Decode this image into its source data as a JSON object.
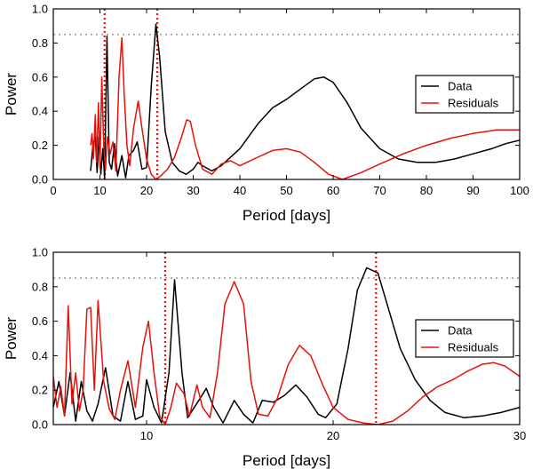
{
  "chart_data": [
    {
      "type": "line",
      "title": "",
      "xlabel": "Period [days]",
      "ylabel": "Power",
      "xlim": [
        0,
        100
      ],
      "ylim": [
        0,
        1.0
      ],
      "xticks": [
        0,
        10,
        20,
        30,
        40,
        50,
        60,
        70,
        80,
        90,
        100
      ],
      "yticks": [
        0.0,
        0.2,
        0.4,
        0.6,
        0.8,
        1.0
      ],
      "grid": false,
      "legend_position": "center-right",
      "threshold": {
        "y": 0.85,
        "color": "#a0a0a0",
        "style": "dotted"
      },
      "markers": [
        {
          "x": 11.0,
          "color": "#e8100a"
        },
        {
          "x": 22.3,
          "color": "#e8100a"
        }
      ],
      "series": [
        {
          "name": "Data",
          "color": "#000000",
          "points": [
            [
              8,
              0.05
            ],
            [
              8.5,
              0.2
            ],
            [
              9,
              0.25
            ],
            [
              9.4,
              0.04
            ],
            [
              9.8,
              0.25
            ],
            [
              10.2,
              0.03
            ],
            [
              10.6,
              0.18
            ],
            [
              11.0,
              0.01
            ],
            [
              11.5,
              0.84
            ],
            [
              12.0,
              0.1
            ],
            [
              12.5,
              0.06
            ],
            [
              13.1,
              0.21
            ],
            [
              13.8,
              0.02
            ],
            [
              14.7,
              0.14
            ],
            [
              15.5,
              0.01
            ],
            [
              16.2,
              0.14
            ],
            [
              17.2,
              0.17
            ],
            [
              18.0,
              0.22
            ],
            [
              19.0,
              0.06
            ],
            [
              20.0,
              0.07
            ],
            [
              21.0,
              0.55
            ],
            [
              22.0,
              0.91
            ],
            [
              22.8,
              0.72
            ],
            [
              24,
              0.28
            ],
            [
              25.5,
              0.1
            ],
            [
              27,
              0.05
            ],
            [
              28.5,
              0.03
            ],
            [
              30,
              0.06
            ],
            [
              31,
              0.1
            ],
            [
              32,
              0.08
            ],
            [
              34,
              0.05
            ],
            [
              36,
              0.08
            ],
            [
              40,
              0.18
            ],
            [
              44,
              0.33
            ],
            [
              47,
              0.42
            ],
            [
              50,
              0.47
            ],
            [
              53,
              0.53
            ],
            [
              56,
              0.59
            ],
            [
              58,
              0.6
            ],
            [
              60,
              0.57
            ],
            [
              63,
              0.45
            ],
            [
              66,
              0.3
            ],
            [
              70,
              0.18
            ],
            [
              74,
              0.12
            ],
            [
              78,
              0.1
            ],
            [
              82,
              0.1
            ],
            [
              86,
              0.12
            ],
            [
              90,
              0.15
            ],
            [
              94,
              0.18
            ],
            [
              97,
              0.21
            ],
            [
              100,
              0.23
            ]
          ]
        },
        {
          "name": "Residuals",
          "color": "#e8100a",
          "points": [
            [
              8,
              0.2
            ],
            [
              8.3,
              0.27
            ],
            [
              8.6,
              0.12
            ],
            [
              9,
              0.38
            ],
            [
              9.3,
              0.1
            ],
            [
              9.7,
              0.45
            ],
            [
              10.0,
              0.07
            ],
            [
              10.4,
              0.6
            ],
            [
              10.8,
              0.2
            ],
            [
              11.2,
              0.06
            ],
            [
              11.6,
              0.25
            ],
            [
              12.2,
              0.15
            ],
            [
              12.8,
              0.22
            ],
            [
              13.4,
              0.05
            ],
            [
              14.1,
              0.6
            ],
            [
              14.7,
              0.83
            ],
            [
              15.2,
              0.5
            ],
            [
              15.8,
              0.2
            ],
            [
              16.4,
              0.08
            ],
            [
              17.2,
              0.3
            ],
            [
              18.2,
              0.46
            ],
            [
              19.0,
              0.3
            ],
            [
              20,
              0.12
            ],
            [
              21,
              0.03
            ],
            [
              22,
              0.0
            ],
            [
              23,
              0.02
            ],
            [
              24.5,
              0.06
            ],
            [
              26,
              0.13
            ],
            [
              27.5,
              0.25
            ],
            [
              28.6,
              0.35
            ],
            [
              29.4,
              0.34
            ],
            [
              30.5,
              0.2
            ],
            [
              32,
              0.06
            ],
            [
              34,
              0.03
            ],
            [
              36,
              0.09
            ],
            [
              38,
              0.11
            ],
            [
              40,
              0.08
            ],
            [
              43,
              0.12
            ],
            [
              47,
              0.17
            ],
            [
              50,
              0.18
            ],
            [
              53,
              0.16
            ],
            [
              56,
              0.1
            ],
            [
              59,
              0.03
            ],
            [
              62,
              0.0
            ],
            [
              66,
              0.04
            ],
            [
              70,
              0.09
            ],
            [
              75,
              0.15
            ],
            [
              80,
              0.2
            ],
            [
              85,
              0.24
            ],
            [
              90,
              0.27
            ],
            [
              95,
              0.29
            ],
            [
              100,
              0.29
            ]
          ]
        }
      ]
    },
    {
      "type": "line",
      "title": "",
      "xlabel": "Period [days]",
      "ylabel": "Power",
      "xlim": [
        5,
        30
      ],
      "ylim": [
        0,
        1.0
      ],
      "xticks": [
        10,
        20,
        30
      ],
      "yticks": [
        0.0,
        0.2,
        0.4,
        0.6,
        0.8,
        1.0
      ],
      "grid": false,
      "legend_position": "center-right",
      "threshold": {
        "y": 0.85,
        "color": "#a0a0a0",
        "style": "dotted"
      },
      "markers": [
        {
          "x": 11.0,
          "color": "#e8100a"
        },
        {
          "x": 22.3,
          "color": "#e8100a"
        }
      ],
      "series": [
        {
          "name": "Data",
          "color": "#000000",
          "points": [
            [
              5.0,
              0.1
            ],
            [
              5.3,
              0.25
            ],
            [
              5.6,
              0.05
            ],
            [
              5.9,
              0.3
            ],
            [
              6.2,
              0.02
            ],
            [
              6.5,
              0.25
            ],
            [
              6.8,
              0.08
            ],
            [
              7.1,
              0.02
            ],
            [
              7.4,
              0.12
            ],
            [
              7.8,
              0.33
            ],
            [
              8.2,
              0.05
            ],
            [
              8.6,
              0.02
            ],
            [
              9.0,
              0.25
            ],
            [
              9.4,
              0.03
            ],
            [
              9.8,
              0.05
            ],
            [
              10.0,
              0.26
            ],
            [
              10.4,
              0.1
            ],
            [
              10.8,
              0.01
            ],
            [
              11.2,
              0.3
            ],
            [
              11.5,
              0.84
            ],
            [
              11.9,
              0.3
            ],
            [
              12.2,
              0.04
            ],
            [
              12.8,
              0.14
            ],
            [
              13.2,
              0.21
            ],
            [
              13.6,
              0.1
            ],
            [
              14.1,
              0.01
            ],
            [
              14.7,
              0.14
            ],
            [
              15.2,
              0.06
            ],
            [
              15.7,
              0.01
            ],
            [
              16.2,
              0.14
            ],
            [
              16.8,
              0.13
            ],
            [
              17.4,
              0.17
            ],
            [
              18.0,
              0.23
            ],
            [
              18.6,
              0.16
            ],
            [
              19.2,
              0.06
            ],
            [
              19.6,
              0.04
            ],
            [
              20.2,
              0.12
            ],
            [
              20.8,
              0.44
            ],
            [
              21.3,
              0.78
            ],
            [
              21.8,
              0.91
            ],
            [
              22.4,
              0.88
            ],
            [
              23.0,
              0.66
            ],
            [
              23.6,
              0.44
            ],
            [
              24.4,
              0.26
            ],
            [
              25.2,
              0.14
            ],
            [
              26.0,
              0.07
            ],
            [
              27.0,
              0.04
            ],
            [
              28.0,
              0.05
            ],
            [
              29.0,
              0.07
            ],
            [
              30.0,
              0.1
            ]
          ]
        },
        {
          "name": "Residuals",
          "color": "#e8100a",
          "points": [
            [
              5.0,
              0.28
            ],
            [
              5.2,
              0.1
            ],
            [
              5.4,
              0.22
            ],
            [
              5.6,
              0.05
            ],
            [
              5.8,
              0.69
            ],
            [
              6.0,
              0.12
            ],
            [
              6.2,
              0.3
            ],
            [
              6.4,
              0.08
            ],
            [
              6.6,
              0.2
            ],
            [
              6.8,
              0.67
            ],
            [
              7.0,
              0.68
            ],
            [
              7.2,
              0.2
            ],
            [
              7.4,
              0.72
            ],
            [
              7.7,
              0.25
            ],
            [
              8.0,
              0.09
            ],
            [
              8.3,
              0.03
            ],
            [
              8.6,
              0.2
            ],
            [
              9.0,
              0.37
            ],
            [
              9.4,
              0.1
            ],
            [
              9.8,
              0.45
            ],
            [
              10.1,
              0.6
            ],
            [
              10.4,
              0.3
            ],
            [
              10.7,
              0.05
            ],
            [
              11.0,
              0.0
            ],
            [
              11.3,
              0.1
            ],
            [
              11.6,
              0.24
            ],
            [
              12.0,
              0.18
            ],
            [
              12.3,
              0.05
            ],
            [
              12.7,
              0.23
            ],
            [
              13.0,
              0.1
            ],
            [
              13.4,
              0.04
            ],
            [
              13.8,
              0.3
            ],
            [
              14.2,
              0.7
            ],
            [
              14.7,
              0.83
            ],
            [
              15.2,
              0.7
            ],
            [
              15.6,
              0.25
            ],
            [
              16.0,
              0.06
            ],
            [
              16.5,
              0.05
            ],
            [
              17.0,
              0.15
            ],
            [
              17.6,
              0.35
            ],
            [
              18.2,
              0.46
            ],
            [
              18.8,
              0.4
            ],
            [
              19.4,
              0.24
            ],
            [
              20.0,
              0.1
            ],
            [
              20.8,
              0.03
            ],
            [
              21.6,
              0.01
            ],
            [
              22.4,
              0.0
            ],
            [
              23.2,
              0.02
            ],
            [
              24.0,
              0.08
            ],
            [
              24.8,
              0.16
            ],
            [
              25.6,
              0.22
            ],
            [
              26.4,
              0.26
            ],
            [
              27.2,
              0.31
            ],
            [
              28.0,
              0.35
            ],
            [
              28.6,
              0.36
            ],
            [
              29.2,
              0.34
            ],
            [
              29.6,
              0.31
            ],
            [
              30.0,
              0.28
            ]
          ]
        }
      ]
    }
  ]
}
